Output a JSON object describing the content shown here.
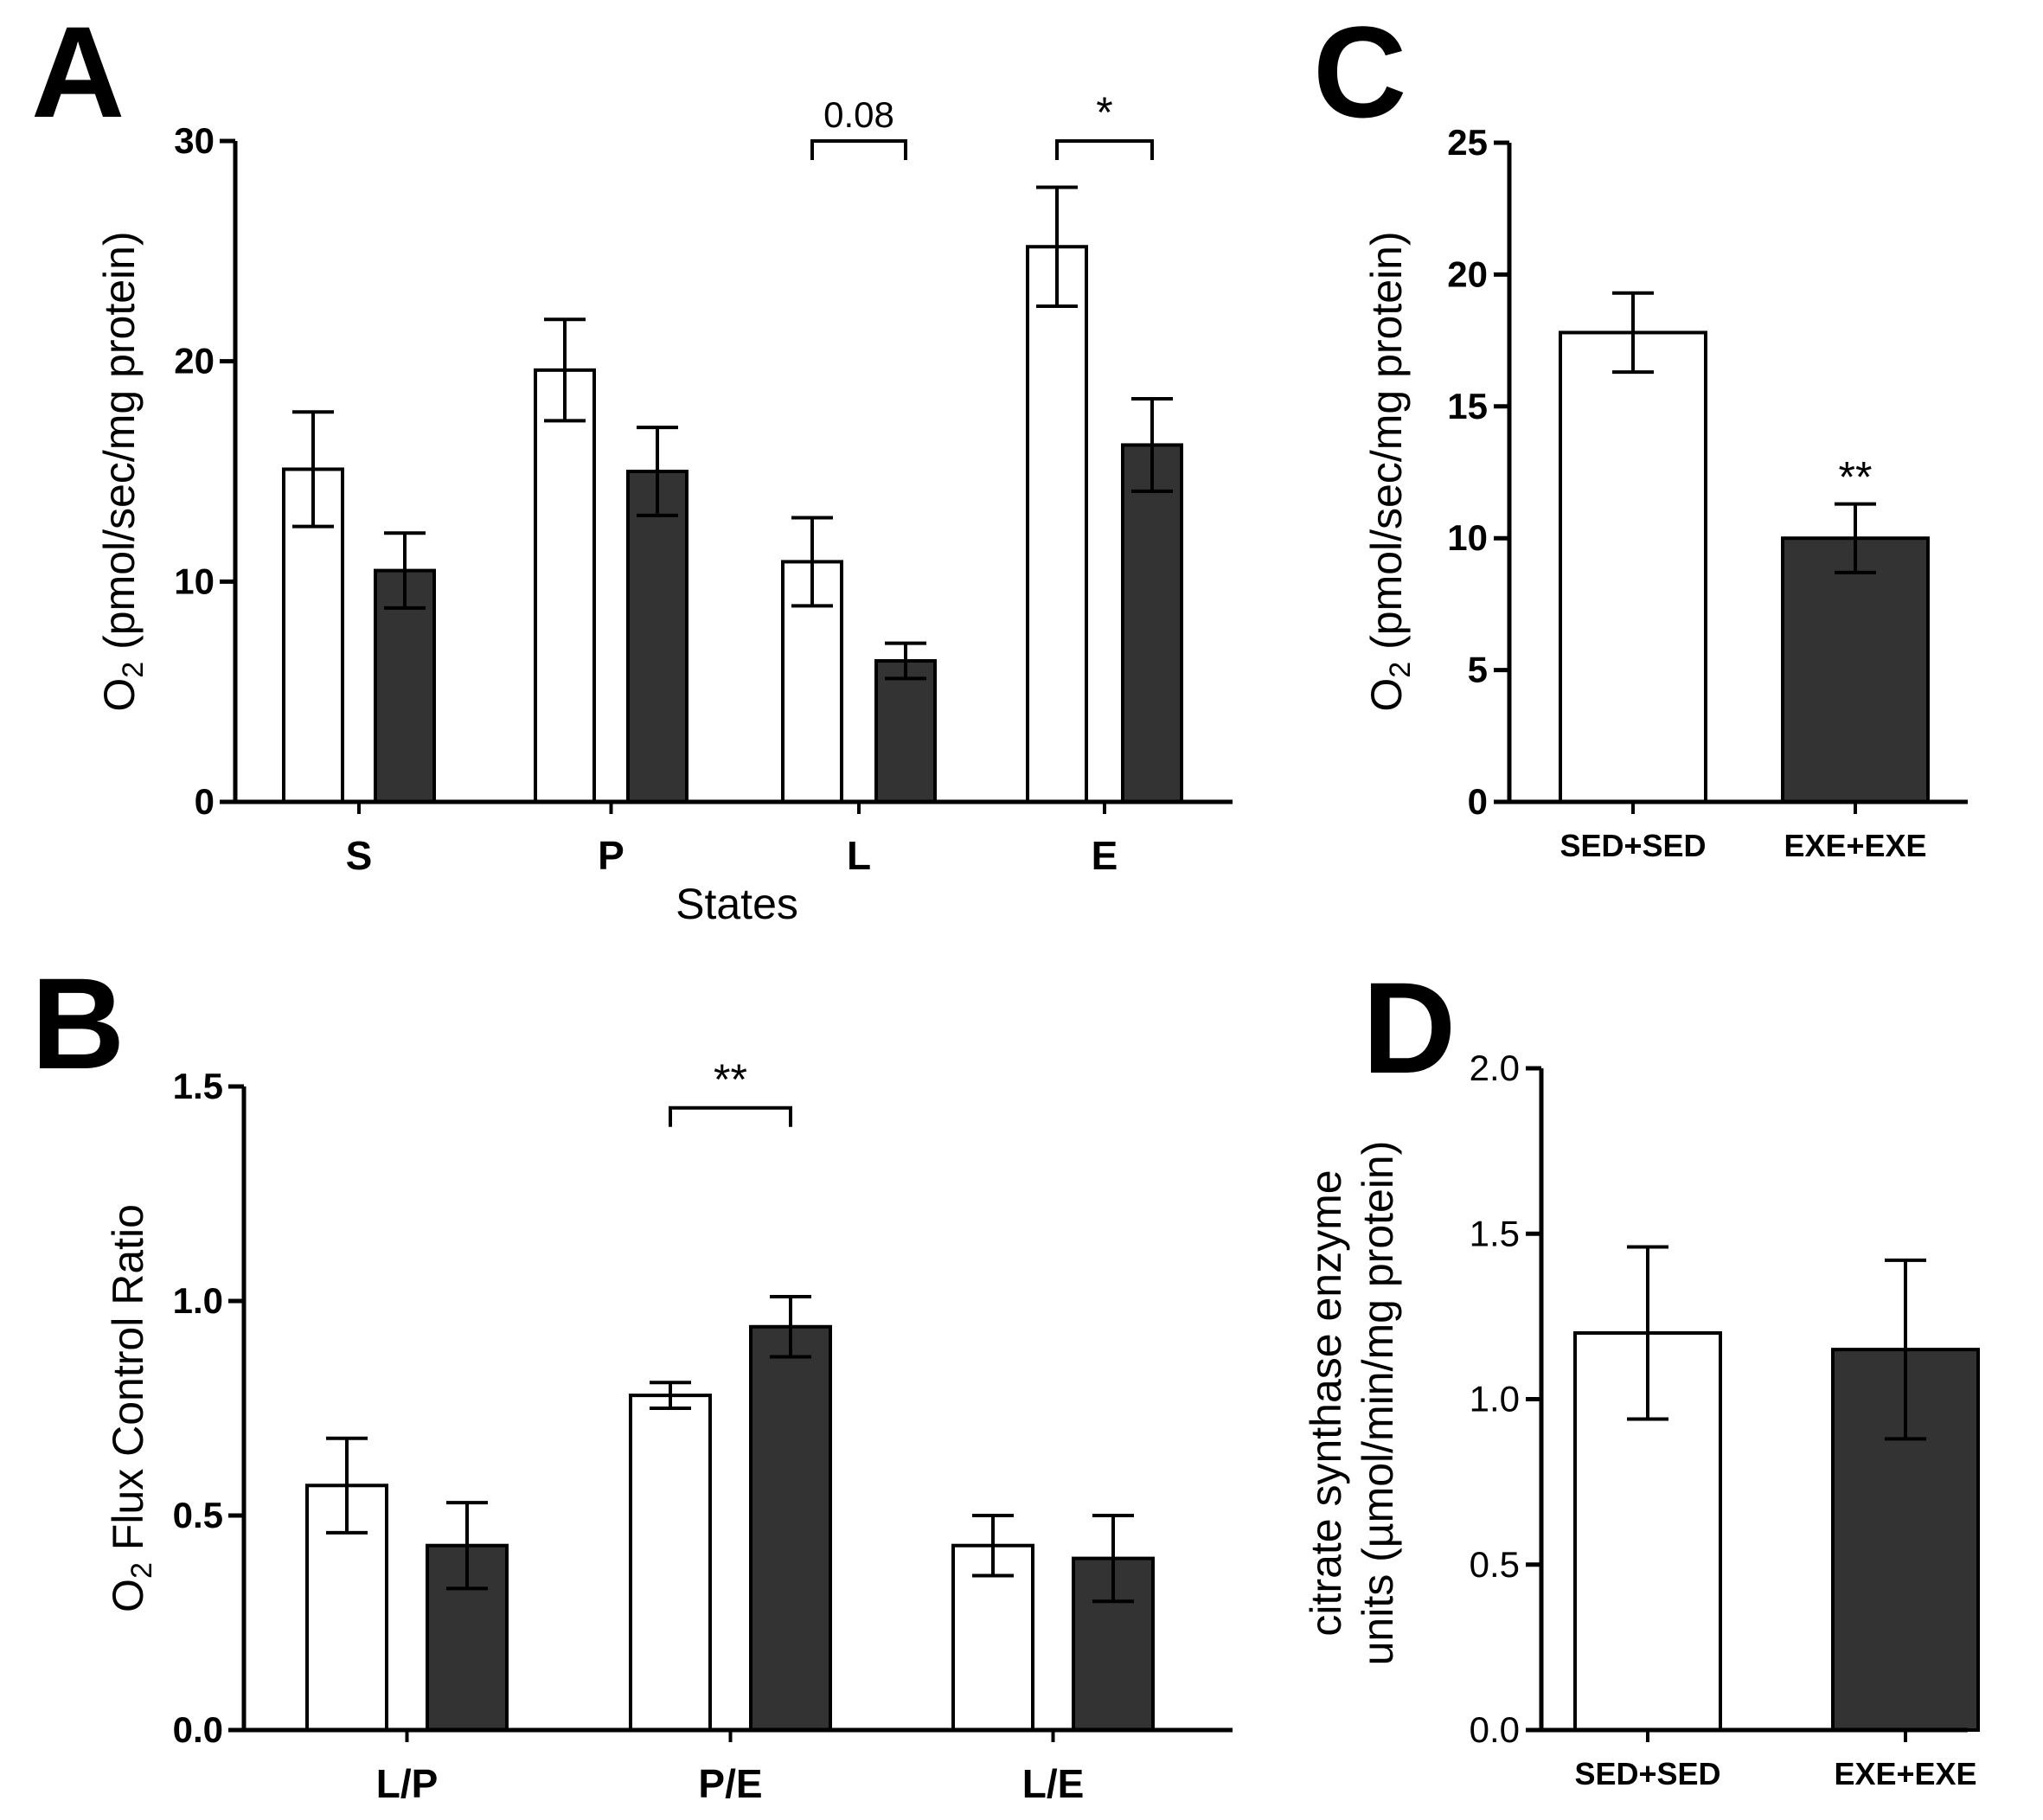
{
  "colors": {
    "sed": "#ffffff",
    "exe": "#333333",
    "stroke": "#000000"
  },
  "chart_data": [
    {
      "id": "A",
      "panel_label": "A",
      "type": "bar",
      "categories": [
        "S",
        "P",
        "L",
        "E"
      ],
      "series": [
        {
          "values": [
            15.1,
            19.6,
            10.9,
            25.2
          ],
          "errors": [
            2.6,
            2.3,
            2.0,
            2.7
          ]
        },
        {
          "values": [
            10.5,
            15.0,
            6.4,
            16.2
          ],
          "errors": [
            1.7,
            2.0,
            0.8,
            2.1
          ]
        }
      ],
      "ylabel_main": "O",
      "ylabel_sub": "2",
      "ylabel_rest": " (pmol/sec/mg protein)",
      "xlabel": "States",
      "ylim": [
        0,
        30
      ],
      "yticks": [
        0,
        10,
        20,
        30
      ],
      "ytick_labels": [
        "0",
        "10",
        "20",
        "30"
      ],
      "annotations": [
        {
          "category": 2,
          "text": "0.08",
          "type": "bracket",
          "y": 30.0
        },
        {
          "category": 3,
          "text": "*",
          "type": "bracket",
          "y": 30.0
        }
      ]
    },
    {
      "id": "B",
      "panel_label": "B",
      "type": "bar",
      "categories": [
        "L/P",
        "P/E",
        "L/E"
      ],
      "series": [
        {
          "values": [
            0.57,
            0.78,
            0.43
          ],
          "errors": [
            0.11,
            0.03,
            0.07
          ]
        },
        {
          "values": [
            0.43,
            0.94,
            0.4
          ],
          "errors": [
            0.1,
            0.07,
            0.1
          ]
        }
      ],
      "ylabel_main": "O",
      "ylabel_sub": "2",
      "ylabel_rest": " Flux Control Ratio",
      "xlabel": "",
      "ylim": [
        0,
        1.5
      ],
      "yticks": [
        0,
        0.5,
        1.0,
        1.5
      ],
      "ytick_labels": [
        "0.0",
        "0.5",
        "1.0",
        "1.5"
      ],
      "annotations": [
        {
          "category": 1,
          "text": "**",
          "type": "bracket",
          "y": 1.45
        }
      ]
    },
    {
      "id": "C",
      "panel_label": "C",
      "type": "bar",
      "categories": [
        "SED+SED",
        "EXE+EXE"
      ],
      "series": [
        {
          "values": [
            17.8,
            null
          ],
          "errors": [
            1.5,
            null
          ]
        },
        {
          "values": [
            null,
            10.0
          ],
          "errors": [
            null,
            1.3
          ]
        }
      ],
      "ylabel_main": "O",
      "ylabel_sub": "2",
      "ylabel_rest": " (pmol/sec/mg protein)",
      "xlabel": "",
      "ylim": [
        0,
        25
      ],
      "yticks": [
        0,
        5,
        10,
        15,
        20,
        25
      ],
      "ytick_labels": [
        "0",
        "5",
        "10",
        "15",
        "20",
        "25"
      ],
      "annotations": [
        {
          "category": 1,
          "text": "**",
          "type": "star"
        }
      ]
    },
    {
      "id": "D",
      "panel_label": "D",
      "type": "bar",
      "categories": [
        "SED+SED",
        "EXE+EXE"
      ],
      "series": [
        {
          "values": [
            1.2,
            null
          ],
          "errors": [
            0.26,
            null
          ]
        },
        {
          "values": [
            null,
            1.15
          ],
          "errors": [
            null,
            0.27
          ]
        }
      ],
      "ylabel_line1": "citrate synthase enzyme",
      "ylabel_line2": "units (µmol/min/mg protein)",
      "xlabel": "",
      "ylim": [
        0,
        2.0
      ],
      "yticks": [
        0,
        0.5,
        1.0,
        1.5,
        2.0
      ],
      "ytick_labels": [
        "0.0",
        "0.5",
        "1.0",
        "1.5",
        "2.0"
      ],
      "annotations": []
    }
  ]
}
